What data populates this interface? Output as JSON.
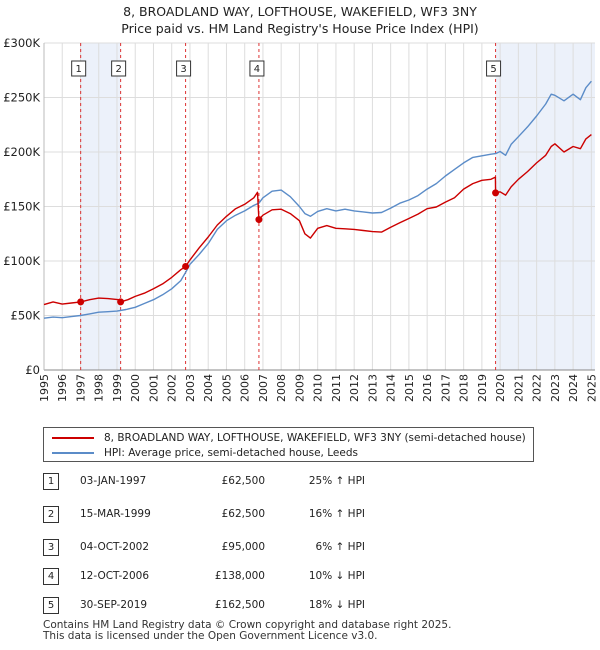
{
  "title_line1": "8, BROADLAND WAY, LOFTHOUSE, WAKEFIELD, WF3 3NY",
  "title_line2": "Price paid vs. HM Land Registry's House Price Index (HPI)",
  "chart_data": {
    "type": "line",
    "ylim": [
      0,
      300000
    ],
    "xlim": [
      1995,
      2025.2
    ],
    "y_ticks": [
      {
        "value": 0,
        "label": "£0"
      },
      {
        "value": 50000,
        "label": "£50K"
      },
      {
        "value": 100000,
        "label": "£100K"
      },
      {
        "value": 150000,
        "label": "£150K"
      },
      {
        "value": 200000,
        "label": "£200K"
      },
      {
        "value": 250000,
        "label": "£250K"
      },
      {
        "value": 300000,
        "label": "£300K"
      }
    ],
    "x_ticks": [
      1995,
      1996,
      1997,
      1998,
      1999,
      2000,
      2001,
      2002,
      2003,
      2004,
      2005,
      2006,
      2007,
      2008,
      2009,
      2010,
      2011,
      2012,
      2013,
      2014,
      2015,
      2016,
      2017,
      2018,
      2019,
      2020,
      2021,
      2022,
      2023,
      2024,
      2025
    ],
    "shaded_ranges": [
      [
        1997.01,
        1999.2
      ],
      [
        2019.75,
        2025.2
      ]
    ],
    "sales": [
      {
        "n": "1",
        "x": 1997.01,
        "price": 62500
      },
      {
        "n": "2",
        "x": 1999.2,
        "price": 62500
      },
      {
        "n": "3",
        "x": 2002.76,
        "price": 95000
      },
      {
        "n": "4",
        "x": 2006.78,
        "price": 138000
      },
      {
        "n": "5",
        "x": 2019.75,
        "price": 162500
      }
    ],
    "series": [
      {
        "name": "8, BROADLAND WAY, LOFTHOUSE, WAKEFIELD, WF3 3NY (semi-detached house)",
        "color": "#cc0000",
        "points": [
          [
            1995,
            60000
          ],
          [
            1995.5,
            62500
          ],
          [
            1996,
            60500
          ],
          [
            1996.5,
            61500
          ],
          [
            1997.01,
            62500
          ],
          [
            1997.5,
            64500
          ],
          [
            1998,
            66000
          ],
          [
            1998.5,
            65500
          ],
          [
            1999.1,
            64500
          ],
          [
            1999.2,
            62500
          ],
          [
            1999.6,
            64500
          ],
          [
            2000,
            67500
          ],
          [
            2000.5,
            70500
          ],
          [
            2001,
            74500
          ],
          [
            2001.5,
            79000
          ],
          [
            2002,
            85000
          ],
          [
            2002.5,
            92000
          ],
          [
            2002.76,
            95000
          ],
          [
            2003,
            101000
          ],
          [
            2003.5,
            112000
          ],
          [
            2004,
            122000
          ],
          [
            2004.5,
            133000
          ],
          [
            2005,
            141000
          ],
          [
            2005.5,
            148000
          ],
          [
            2006,
            152000
          ],
          [
            2006.5,
            158000
          ],
          [
            2006.7,
            163000
          ],
          [
            2006.78,
            138000
          ],
          [
            2007,
            142000
          ],
          [
            2007.5,
            147000
          ],
          [
            2008,
            147500
          ],
          [
            2008.5,
            143500
          ],
          [
            2009,
            137000
          ],
          [
            2009.3,
            125000
          ],
          [
            2009.6,
            121000
          ],
          [
            2010,
            130000
          ],
          [
            2010.5,
            132500
          ],
          [
            2011,
            130000
          ],
          [
            2011.5,
            129500
          ],
          [
            2012,
            129000
          ],
          [
            2012.5,
            128000
          ],
          [
            2013,
            127000
          ],
          [
            2013.5,
            126500
          ],
          [
            2014,
            131000
          ],
          [
            2014.5,
            135000
          ],
          [
            2015,
            139000
          ],
          [
            2015.5,
            143000
          ],
          [
            2016,
            148000
          ],
          [
            2016.5,
            149500
          ],
          [
            2017,
            154000
          ],
          [
            2017.5,
            158000
          ],
          [
            2018,
            166000
          ],
          [
            2018.5,
            171000
          ],
          [
            2019,
            174000
          ],
          [
            2019.5,
            175000
          ],
          [
            2019.74,
            177000
          ],
          [
            2019.75,
            162500
          ],
          [
            2020,
            163500
          ],
          [
            2020.3,
            160500
          ],
          [
            2020.6,
            168000
          ],
          [
            2021,
            175000
          ],
          [
            2021.5,
            182000
          ],
          [
            2022,
            190000
          ],
          [
            2022.5,
            197000
          ],
          [
            2022.8,
            205000
          ],
          [
            2023,
            207500
          ],
          [
            2023.5,
            200000
          ],
          [
            2024,
            205000
          ],
          [
            2024.4,
            203000
          ],
          [
            2024.7,
            212000
          ],
          [
            2025,
            216000
          ]
        ]
      },
      {
        "name": "HPI: Average price, semi-detached house, Leeds",
        "color": "#5b8cc8",
        "points": [
          [
            1995,
            47500
          ],
          [
            1995.5,
            48500
          ],
          [
            1996,
            48000
          ],
          [
            1996.5,
            49000
          ],
          [
            1997,
            50000
          ],
          [
            1997.5,
            51500
          ],
          [
            1998,
            53000
          ],
          [
            1998.5,
            53500
          ],
          [
            1999,
            54000
          ],
          [
            1999.5,
            55500
          ],
          [
            2000,
            57500
          ],
          [
            2000.5,
            61000
          ],
          [
            2001,
            64500
          ],
          [
            2001.5,
            69000
          ],
          [
            2002,
            74500
          ],
          [
            2002.5,
            82000
          ],
          [
            2002.76,
            89500
          ],
          [
            2003,
            97000
          ],
          [
            2003.5,
            106000
          ],
          [
            2004,
            116000
          ],
          [
            2004.5,
            129000
          ],
          [
            2005,
            137000
          ],
          [
            2005.5,
            142000
          ],
          [
            2006,
            146000
          ],
          [
            2006.5,
            151000
          ],
          [
            2006.78,
            153000
          ],
          [
            2007,
            158000
          ],
          [
            2007.5,
            164000
          ],
          [
            2008,
            165000
          ],
          [
            2008.5,
            159000
          ],
          [
            2009,
            150000
          ],
          [
            2009.3,
            143500
          ],
          [
            2009.6,
            141000
          ],
          [
            2010,
            145500
          ],
          [
            2010.5,
            148000
          ],
          [
            2011,
            146000
          ],
          [
            2011.5,
            147500
          ],
          [
            2012,
            146000
          ],
          [
            2012.5,
            145000
          ],
          [
            2013,
            144000
          ],
          [
            2013.5,
            144500
          ],
          [
            2014,
            148500
          ],
          [
            2014.5,
            153000
          ],
          [
            2015,
            156000
          ],
          [
            2015.5,
            160000
          ],
          [
            2016,
            166000
          ],
          [
            2016.5,
            171000
          ],
          [
            2017,
            178000
          ],
          [
            2017.5,
            184000
          ],
          [
            2018,
            190000
          ],
          [
            2018.5,
            195000
          ],
          [
            2019,
            196500
          ],
          [
            2019.5,
            198000
          ],
          [
            2019.75,
            198500
          ],
          [
            2020,
            200500
          ],
          [
            2020.3,
            197000
          ],
          [
            2020.6,
            207000
          ],
          [
            2021,
            214000
          ],
          [
            2021.5,
            223000
          ],
          [
            2022,
            233000
          ],
          [
            2022.5,
            244000
          ],
          [
            2022.8,
            253000
          ],
          [
            2023,
            252000
          ],
          [
            2023.5,
            247000
          ],
          [
            2024,
            253000
          ],
          [
            2024.4,
            248000
          ],
          [
            2024.7,
            259000
          ],
          [
            2025,
            265000
          ]
        ]
      }
    ]
  },
  "legend": {
    "red_label": "8, BROADLAND WAY, LOFTHOUSE, WAKEFIELD, WF3 3NY (semi-detached house)",
    "blue_label": "HPI: Average price, semi-detached house, Leeds"
  },
  "transactions": [
    {
      "n": "1",
      "date": "03-JAN-1997",
      "price": "£62,500",
      "hpi": "25% ↑ HPI"
    },
    {
      "n": "2",
      "date": "15-MAR-1999",
      "price": "£62,500",
      "hpi": "16% ↑ HPI"
    },
    {
      "n": "3",
      "date": "04-OCT-2002",
      "price": "£95,000",
      "hpi": "6% ↑ HPI"
    },
    {
      "n": "4",
      "date": "12-OCT-2006",
      "price": "£138,000",
      "hpi": "10% ↓ HPI"
    },
    {
      "n": "5",
      "date": "30-SEP-2019",
      "price": "£162,500",
      "hpi": "18% ↓ HPI"
    }
  ],
  "footer_line1": "Contains HM Land Registry data © Crown copyright and database right 2025.",
  "footer_line2": "This data is licensed under the Open Government Licence v3.0."
}
